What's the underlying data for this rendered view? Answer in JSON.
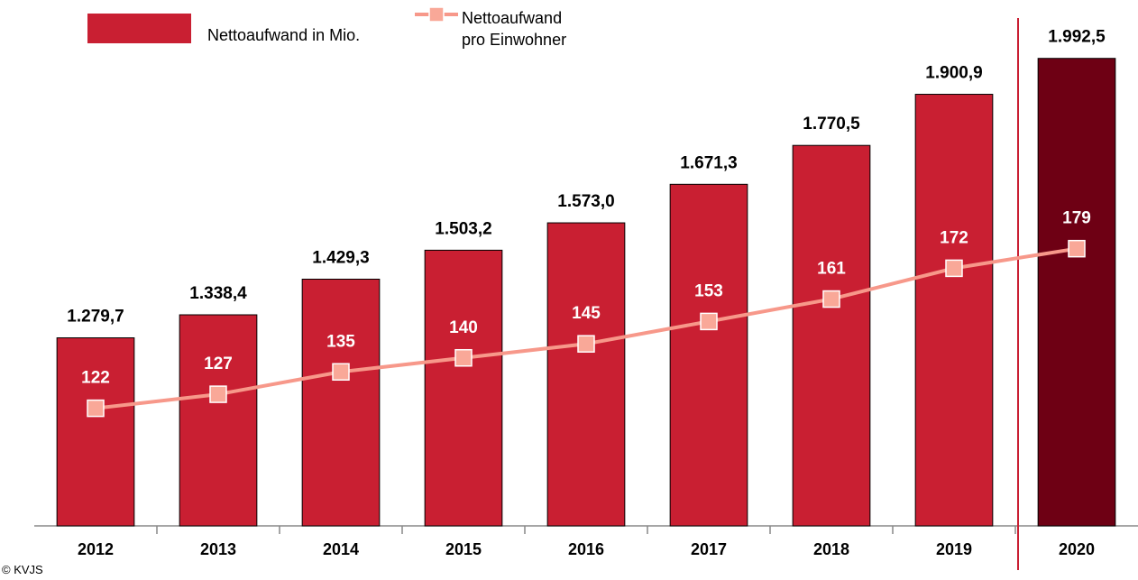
{
  "chart_data": {
    "type": "bar_line",
    "categories": [
      "2012",
      "2013",
      "2014",
      "2015",
      "2016",
      "2017",
      "2018",
      "2019",
      "2020"
    ],
    "series": [
      {
        "name": "Nettoaufwand in Mio.",
        "type": "bar",
        "color": "#c91f32",
        "colors": [
          "#c91f32",
          "#c91f32",
          "#c91f32",
          "#c91f32",
          "#c91f32",
          "#c91f32",
          "#c91f32",
          "#c91f32",
          "#6e0014"
        ],
        "values": [
          1279.7,
          1338.4,
          1429.3,
          1503.2,
          1573.0,
          1671.3,
          1770.5,
          1900.9,
          1992.5
        ],
        "value_labels": [
          "1.279,7",
          "1.338,4",
          "1.429,3",
          "1.503,2",
          "1.573,0",
          "1.671,3",
          "1.770,5",
          "1.900,9",
          "1.992,5"
        ]
      },
      {
        "name": "Nettoaufwand\npro Einwohner",
        "type": "line",
        "axis": "y2",
        "color": "#f7988a",
        "values": [
          122,
          127,
          135,
          140,
          145,
          153,
          161,
          172,
          179
        ]
      }
    ],
    "ylim": [
      800,
      2100
    ],
    "y2lim": [
      80,
      262
    ],
    "footer": "© KVJS"
  }
}
